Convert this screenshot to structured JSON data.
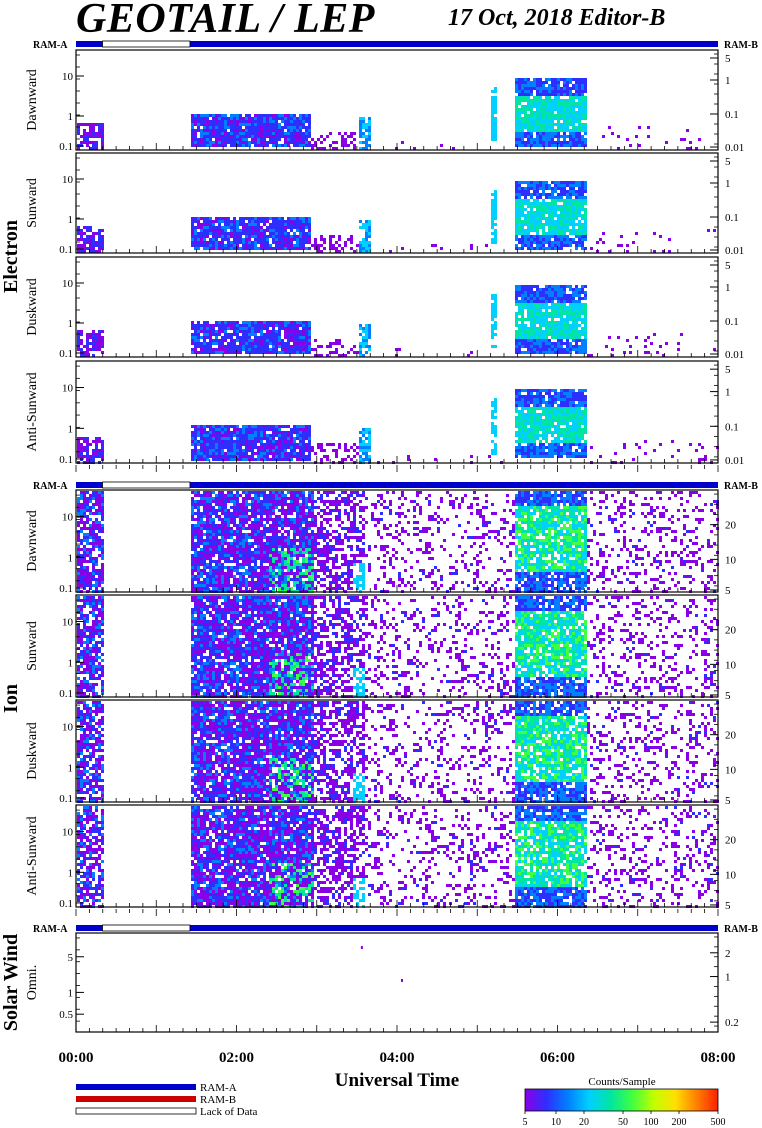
{
  "header": {
    "title": "GEOTAIL / LEP",
    "date_label": "17 Oct, 2018   Editor-B"
  },
  "labels": {
    "ram_a": "RAM-A",
    "ram_b": "RAM-B"
  },
  "groups": [
    {
      "key": "electron",
      "title": "Electron",
      "panels": [
        {
          "label": "Dawnward",
          "left_ticks": [
            "10",
            "1",
            "0.1"
          ],
          "right_ticks": [
            "5",
            "1",
            "0.1",
            "0.01"
          ]
        },
        {
          "label": "Sunward",
          "left_ticks": [
            "10",
            "1",
            "0.1"
          ],
          "right_ticks": [
            "5",
            "1",
            "0.1",
            "0.01"
          ]
        },
        {
          "label": "Duskward",
          "left_ticks": [
            "10",
            "1",
            "0.1"
          ],
          "right_ticks": [
            "5",
            "1",
            "0.1",
            "0.01"
          ]
        },
        {
          "label": "Anti-Sunward",
          "left_ticks": [
            "10",
            "1",
            "0.1"
          ],
          "right_ticks": [
            "5",
            "1",
            "0.1",
            "0.01"
          ]
        }
      ]
    },
    {
      "key": "ion",
      "title": "Ion",
      "panels": [
        {
          "label": "Dawnward",
          "left_ticks": [
            "10",
            "1",
            "0.1"
          ],
          "right_ticks": [
            "20",
            "10",
            "5"
          ]
        },
        {
          "label": "Sunward",
          "left_ticks": [
            "10",
            "1",
            "0.1"
          ],
          "right_ticks": [
            "20",
            "10",
            "5"
          ]
        },
        {
          "label": "Duskward",
          "left_ticks": [
            "10",
            "1",
            "0.1"
          ],
          "right_ticks": [
            "20",
            "10",
            "5"
          ]
        },
        {
          "label": "Anti-Sunward",
          "left_ticks": [
            "10",
            "1",
            "0.1"
          ],
          "right_ticks": [
            "20",
            "10",
            "5"
          ]
        }
      ]
    },
    {
      "key": "solar_wind",
      "title": "Solar Wind",
      "panels": [
        {
          "label": "Omni.",
          "left_ticks": [
            "5",
            "1",
            "0.5"
          ],
          "right_ticks": [
            "2",
            "1",
            "0.2"
          ]
        }
      ]
    }
  ],
  "time_axis": {
    "ticks": [
      "00:00",
      "02:00",
      "04:00",
      "06:00",
      "08:00"
    ],
    "title": "Universal Time"
  },
  "legend": {
    "ram_a": "RAM-A",
    "ram_b": "RAM-B",
    "lack": "Lack of Data",
    "colors": {
      "ram_a": "#0000cc",
      "ram_b": "#cc0000",
      "lack": "#ffffff"
    }
  },
  "colorbar": {
    "title": "Counts/Sample",
    "ticks": [
      "5",
      "10",
      "20",
      "50",
      "100",
      "200",
      "500"
    ]
  },
  "chart_data": {
    "type": "heatmap",
    "title": "GEOTAIL / LEP",
    "xlabel": "Universal Time",
    "x_range_hours": [
      0,
      8
    ],
    "y_scale": "log",
    "value_label": "Counts/Sample",
    "value_range": [
      5,
      500
    ],
    "colormap": [
      "#8a00e6",
      "#2e2eff",
      "#0080ff",
      "#00d0ff",
      "#00e6a0",
      "#40ff40",
      "#c0ff00",
      "#ffe000",
      "#ff8000",
      "#ff2000"
    ],
    "ram_a_hours": [
      [
        0,
        0.33
      ],
      [
        1.42,
        8
      ]
    ],
    "lack_of_data_hours": [
      [
        0.33,
        1.42
      ]
    ]
  }
}
